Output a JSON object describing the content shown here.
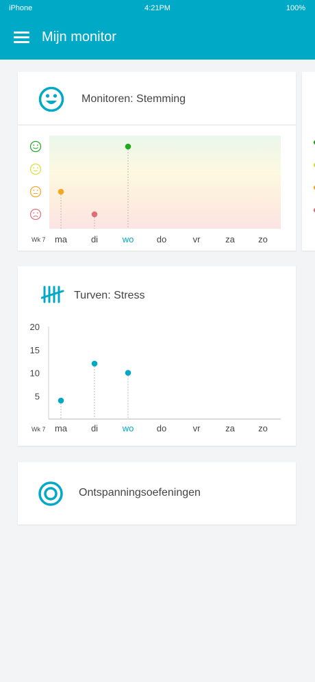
{
  "status_bar": {
    "carrier": "iPhone",
    "time": "4:21PM",
    "battery": "100%"
  },
  "header": {
    "title": "Mijn monitor",
    "menu_icon": "menu-icon"
  },
  "cards": {
    "mood": {
      "title": "Monitoren: Stemming",
      "icon": "smiley-icon"
    },
    "stress": {
      "title": "Turven: Stress",
      "icon": "tally-icon"
    },
    "relax": {
      "title": "Ontspanningsoefeningen",
      "icon": "target-icon"
    }
  },
  "colors": {
    "primary": "#00a9c6",
    "mood_great": "#1faa1f",
    "mood_good": "#d8e03a",
    "mood_neutral": "#f5a623",
    "mood_bad": "#e06e7a"
  },
  "chart_data": [
    {
      "type": "scatter",
      "title": "Monitoren: Stemming",
      "week_label": "Wk 7",
      "categories": [
        "ma",
        "di",
        "wo",
        "do",
        "vr",
        "za",
        "zo"
      ],
      "highlight_category": "wo",
      "levels": [
        "happy",
        "content",
        "neutral",
        "sad"
      ],
      "points": [
        {
          "x": "ma",
          "level": "neutral",
          "color": "#f5a623"
        },
        {
          "x": "di",
          "level": "sad",
          "color": "#e06e7a"
        },
        {
          "x": "wo",
          "level": "happy",
          "color": "#1faa1f"
        }
      ]
    },
    {
      "type": "scatter",
      "title": "Turven: Stress",
      "week_label": "Wk 7",
      "categories": [
        "ma",
        "di",
        "wo",
        "do",
        "vr",
        "za",
        "zo"
      ],
      "highlight_category": "wo",
      "y_ticks": [
        5,
        10,
        15,
        20
      ],
      "ylim": [
        0,
        20
      ],
      "points": [
        {
          "x": "ma",
          "y": 4
        },
        {
          "x": "di",
          "y": 12
        },
        {
          "x": "wo",
          "y": 10
        }
      ]
    }
  ]
}
